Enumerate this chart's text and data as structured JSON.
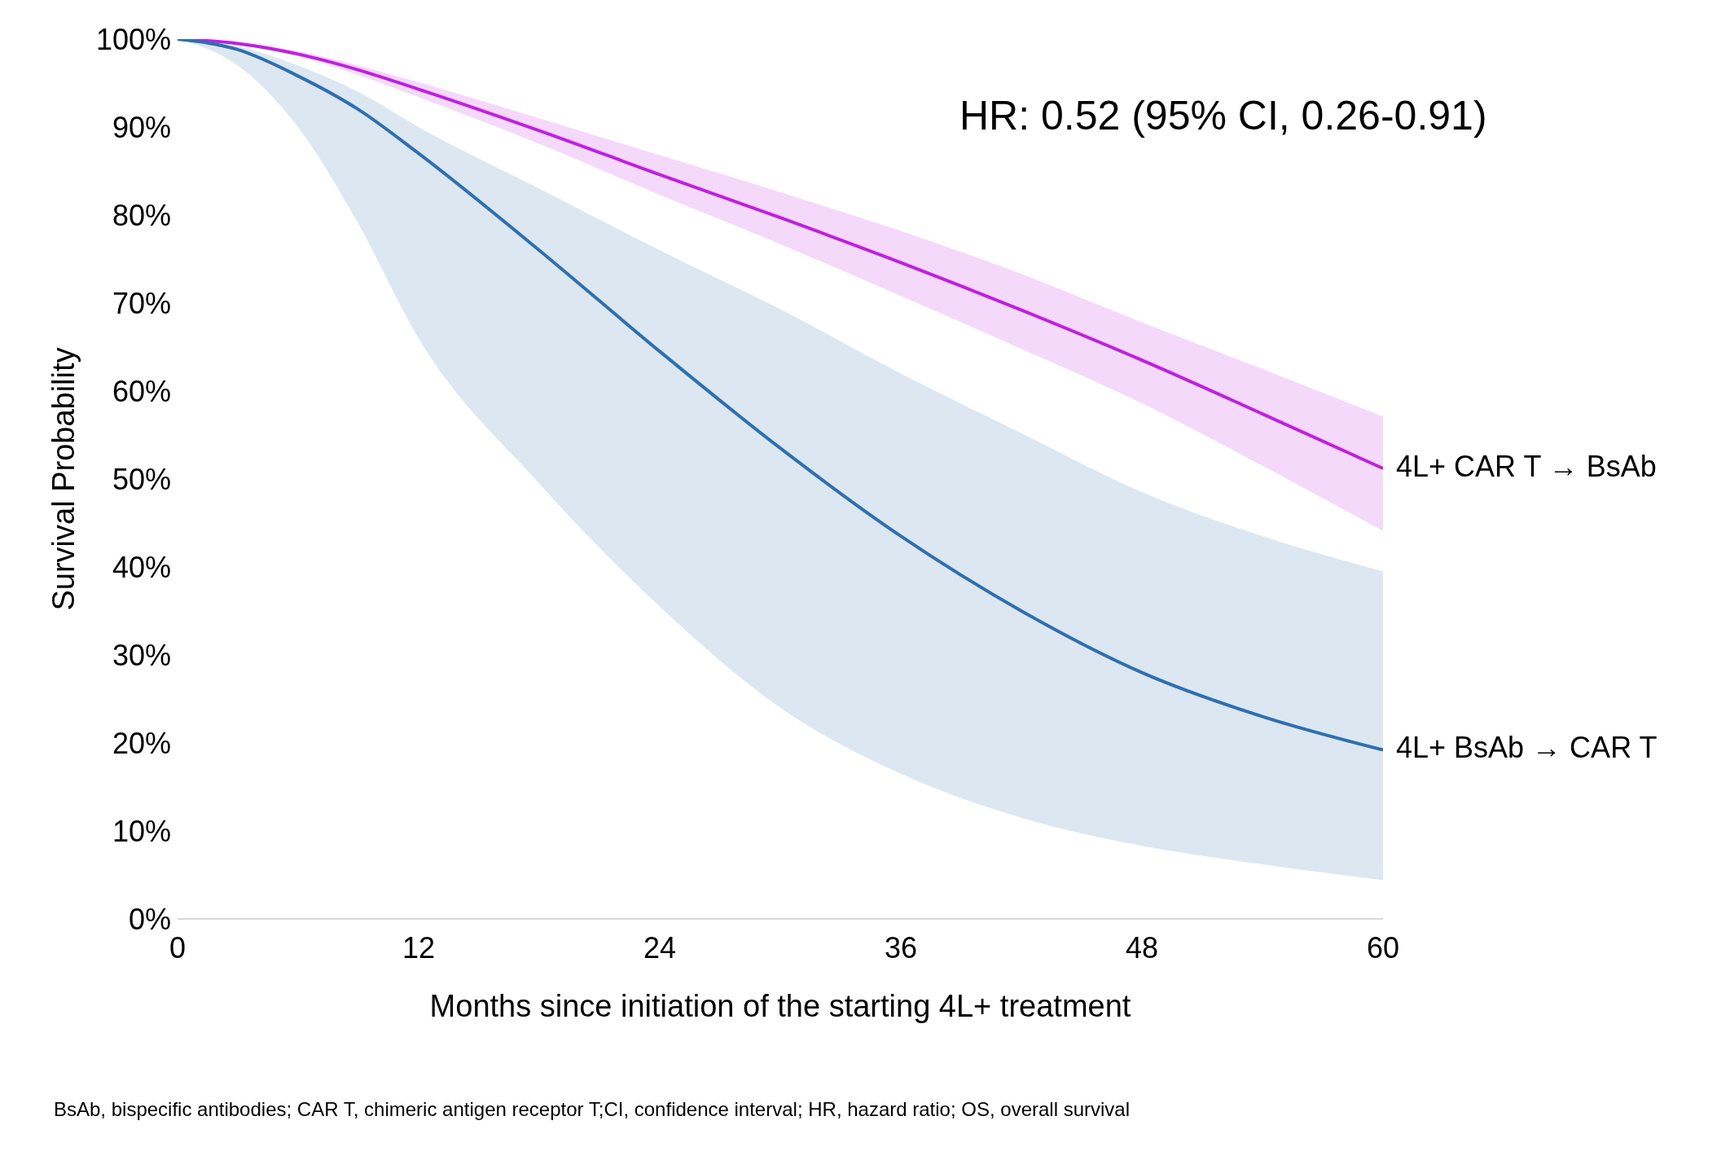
{
  "chart_data": {
    "type": "line",
    "xlabel": "Months since initiation of the starting 4L+ treatment",
    "ylabel": "Survival Probability",
    "annotations": [
      "HR: 0.52 (95% CI, 0.26-0.91)",
      "BsAb, bispecific antibodies; CAR T, chimeric antigen receptor T;CI, confidence interval; HR, hazard ratio; OS, overall survival"
    ],
    "x": [
      0,
      3,
      6,
      9,
      12,
      18,
      24,
      30,
      36,
      42,
      48,
      54,
      60
    ],
    "series": [
      {
        "name": "4L+ CAR T → BsAb",
        "color": "#c020e0",
        "values": [
          100,
          99.5,
          98.3,
          96.5,
          94.3,
          89.6,
          84.6,
          79.7,
          74.6,
          69.2,
          63.5,
          57.4,
          51.2
        ],
        "lower": [
          100,
          99.4,
          98,
          95.9,
          93.4,
          88.1,
          82.3,
          76.7,
          70.8,
          64.8,
          58.6,
          51.5,
          44.1
        ],
        "upper": [
          100,
          99.6,
          98.6,
          97,
          95.1,
          91,
          86.8,
          82.6,
          78.2,
          73.3,
          67.8,
          62.5,
          57.1
        ]
      },
      {
        "name": "4L+ BsAb → CAR T",
        "color": "#2e6fb0",
        "values": [
          100,
          98.8,
          95.8,
          92,
          87,
          76,
          64.5,
          53.5,
          43.5,
          35,
          28,
          23,
          19.2
        ],
        "lower": [
          100,
          97,
          90,
          79,
          66,
          49.5,
          35.5,
          24,
          16.5,
          11.5,
          8.3,
          6.2,
          4.4
        ],
        "upper": [
          100,
          99.2,
          97,
          94,
          90,
          83,
          76,
          69.3,
          62,
          55.2,
          48.5,
          43.5,
          39.5
        ]
      }
    ],
    "xlim": [
      0,
      60
    ],
    "xticks": [
      0,
      12,
      24,
      36,
      48,
      60
    ],
    "ylim": [
      0,
      100
    ],
    "yticks": [
      {
        "value": 0,
        "label": "0%"
      },
      {
        "value": 10,
        "label": "10%"
      },
      {
        "value": 20,
        "label": "20%"
      },
      {
        "value": 30,
        "label": "30%"
      },
      {
        "value": 40,
        "label": "40%"
      },
      {
        "value": 50,
        "label": "50%"
      },
      {
        "value": 60,
        "label": "60%"
      },
      {
        "value": 70,
        "label": "70%"
      },
      {
        "value": 80,
        "label": "80%"
      },
      {
        "value": 90,
        "label": "90%"
      },
      {
        "value": 100,
        "label": "100%"
      }
    ],
    "marker": "none",
    "line_style": "solid"
  }
}
